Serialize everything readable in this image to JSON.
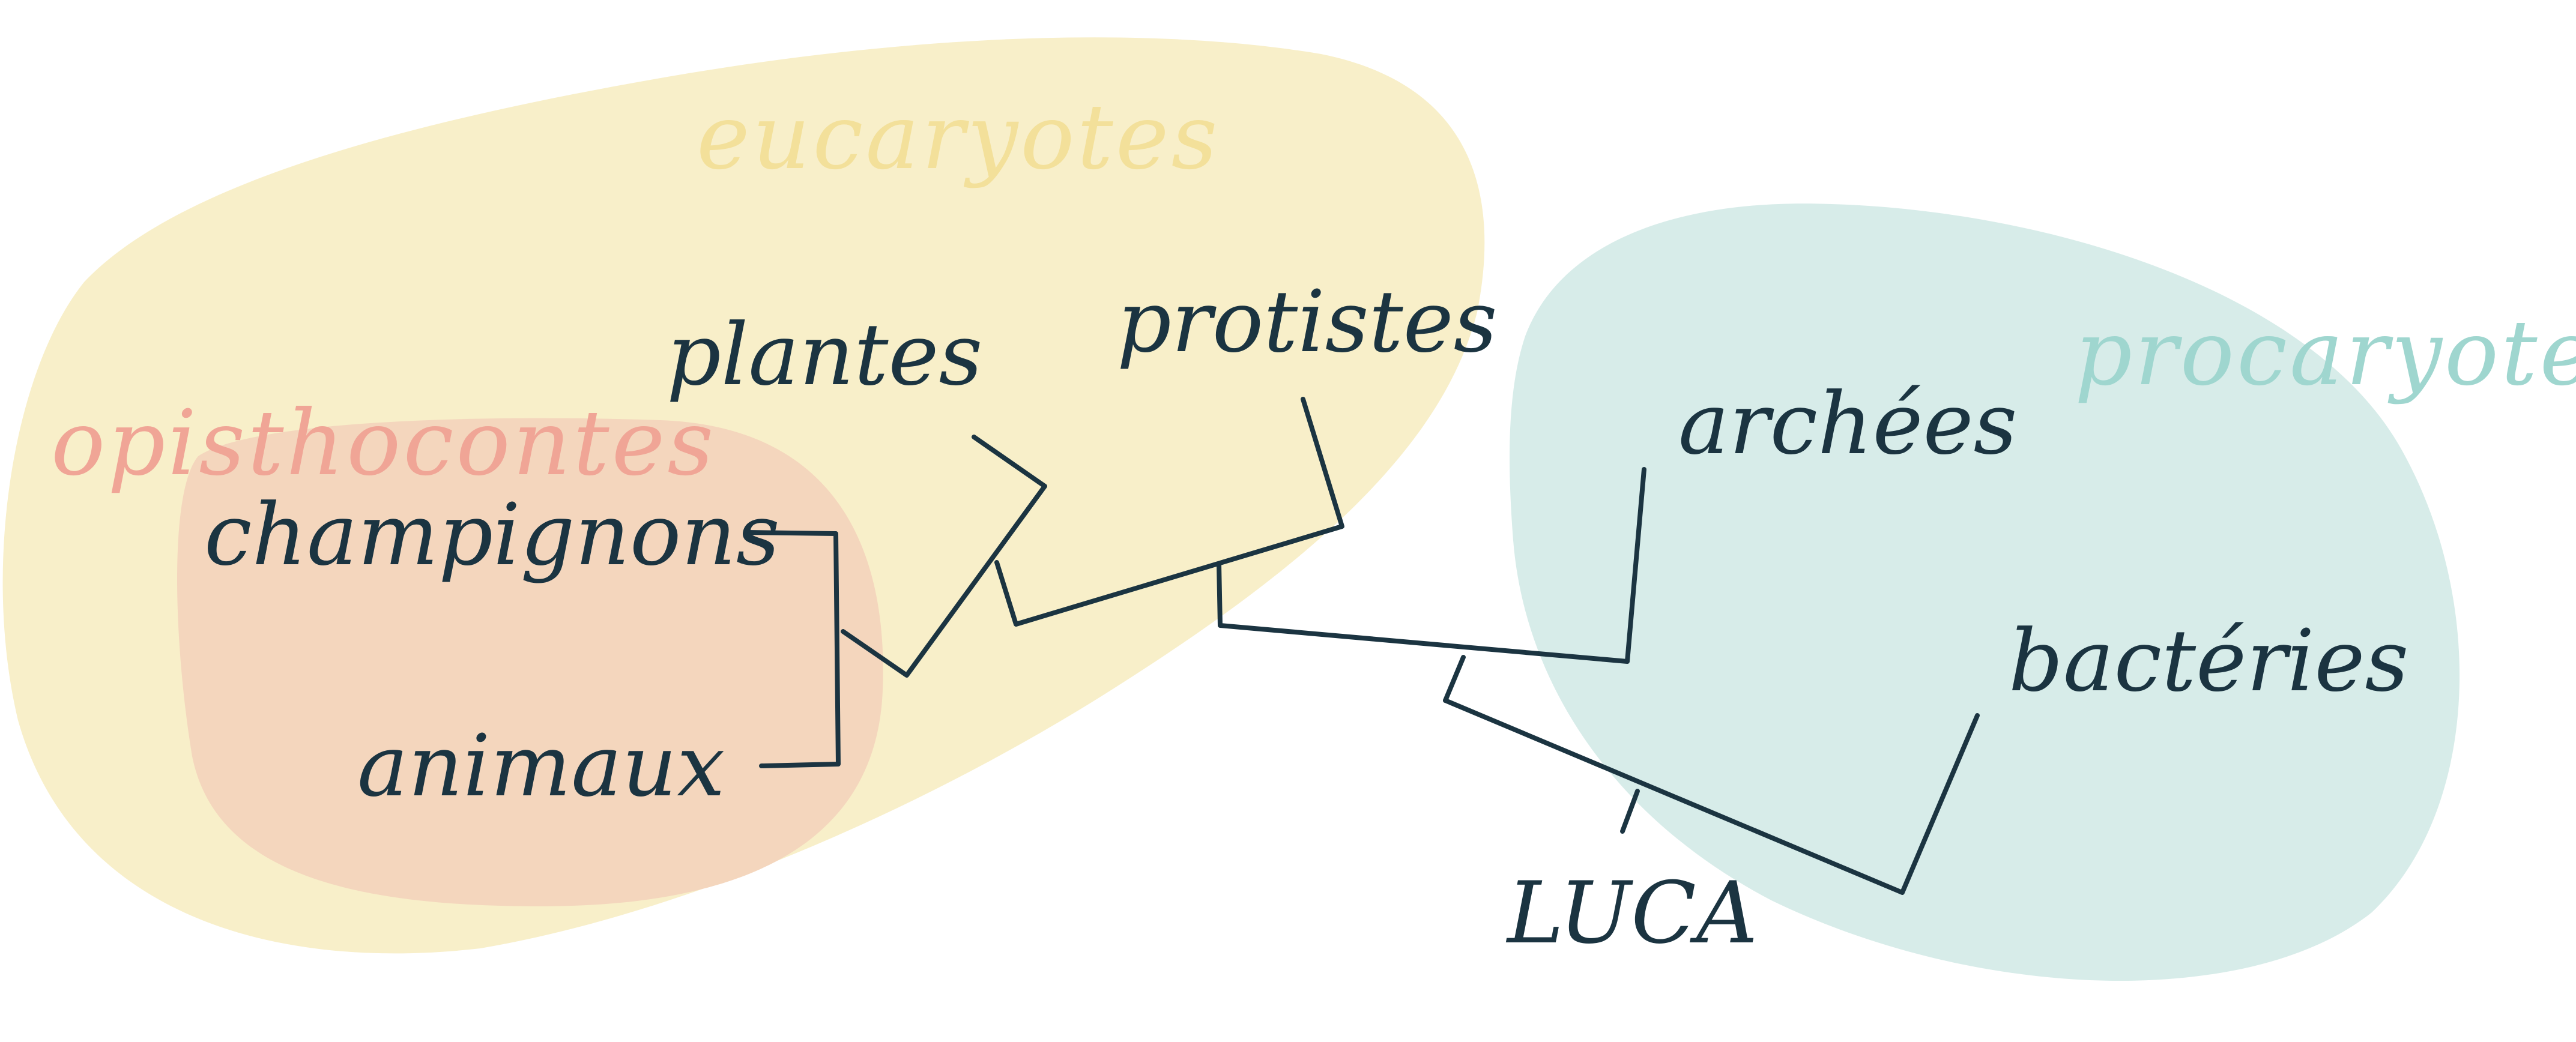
{
  "diagram": {
    "colors": {
      "eucaryotes_fill": "#f8efc9",
      "eucaryotes_label": "#f3e09a",
      "opisthocontes_fill": "#f4d6bd",
      "opisthocontes_label": "#f0a596",
      "procaryotes_fill": "#d7ece9",
      "procaryotes_label": "#9fd6cf",
      "branch": "#1b3441",
      "taxon_text": "#1b3441"
    },
    "groups": {
      "eucaryotes": "eucaryotes",
      "opisthocontes": "opisthocontes",
      "procaryotes": "procaryotes"
    },
    "taxa": {
      "champignons": "champignons",
      "animaux": "animaux",
      "plantes": "plantes",
      "protistes": "protistes",
      "archees": "archées",
      "bacteries": "bactéries",
      "luca": "LUCA"
    }
  }
}
